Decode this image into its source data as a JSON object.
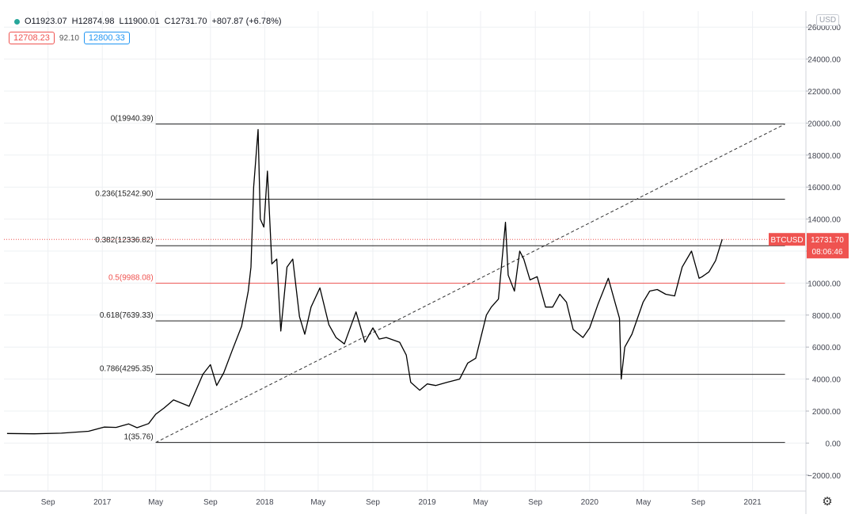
{
  "ohlc": {
    "open": "O11923.07",
    "high": "H12874.98",
    "low": "L11900.01",
    "close": "C12731.70",
    "change": "+807.87 (+6.78%)"
  },
  "quote": {
    "sell": "12708.23",
    "spread": "92.10",
    "buy": "12800.33"
  },
  "currency_button": "USD",
  "price_tag": {
    "symbol": "BTCUSD",
    "price": "12731.70",
    "countdown": "08:06:46"
  },
  "colors": {
    "price_line": "#000000",
    "accent_red": "#ef5350",
    "grid": "#eef0f3",
    "fib_line": "#222222"
  },
  "icons": {
    "settings": "gear-icon",
    "status": "dot-icon"
  },
  "chart_data": {
    "type": "line",
    "series": [
      {
        "x": [
          "2016-06-01",
          "2016-08-01",
          "2016-10-01",
          "2016-12-01",
          "2017-01-05",
          "2017-02-01",
          "2017-03-01",
          "2017-03-20",
          "2017-04-15",
          "2017-05-01",
          "2017-05-20",
          "2017-06-10",
          "2017-07-15",
          "2017-08-15",
          "2017-09-01",
          "2017-09-15",
          "2017-10-01",
          "2017-10-20",
          "2017-11-10",
          "2017-11-25",
          "2017-12-01",
          "2017-12-07",
          "2017-12-17",
          "2017-12-22",
          "2017-12-30",
          "2018-01-07",
          "2018-01-17",
          "2018-01-28",
          "2018-02-06",
          "2018-02-20",
          "2018-03-05",
          "2018-03-20",
          "2018-04-01",
          "2018-04-15",
          "2018-05-05",
          "2018-05-25",
          "2018-06-10",
          "2018-06-29",
          "2018-07-25",
          "2018-08-14",
          "2018-09-01",
          "2018-09-15",
          "2018-10-01",
          "2018-10-31",
          "2018-11-15",
          "2018-11-25",
          "2018-12-15",
          "2019-01-01",
          "2019-01-20",
          "2019-02-15",
          "2019-03-15",
          "2019-04-02",
          "2019-04-20",
          "2019-05-14",
          "2019-05-25",
          "2019-06-10",
          "2019-06-20",
          "2019-06-26",
          "2019-07-02",
          "2019-07-16",
          "2019-07-28",
          "2019-08-06",
          "2019-08-20",
          "2019-09-05",
          "2019-09-24",
          "2019-10-10",
          "2019-10-26",
          "2019-11-10",
          "2019-11-25",
          "2019-12-17",
          "2020-01-01",
          "2020-01-20",
          "2020-02-12",
          "2020-02-28",
          "2020-03-08",
          "2020-03-12",
          "2020-03-20",
          "2020-04-05",
          "2020-04-30",
          "2020-05-15",
          "2020-06-01",
          "2020-06-20",
          "2020-07-10",
          "2020-07-27",
          "2020-08-17",
          "2020-09-03",
          "2020-09-10",
          "2020-09-25",
          "2020-10-10",
          "2020-10-20",
          "2020-10-25"
        ],
        "y": [
          600,
          580,
          620,
          740,
          1000,
          980,
          1200,
          960,
          1220,
          1800,
          2200,
          2700,
          2300,
          4300,
          4900,
          3600,
          4400,
          5800,
          7300,
          9500,
          11000,
          16000,
          19600,
          14000,
          13500,
          17000,
          11200,
          11500,
          7000,
          11000,
          11500,
          7900,
          6800,
          8500,
          9700,
          7400,
          6600,
          6200,
          8200,
          6300,
          7200,
          6500,
          6600,
          6300,
          5500,
          3800,
          3300,
          3700,
          3600,
          3800,
          4000,
          5000,
          5300,
          8000,
          8500,
          9000,
          12000,
          13800,
          10500,
          9500,
          12000,
          11500,
          10200,
          10400,
          8500,
          8500,
          9300,
          8800,
          7100,
          6600,
          7200,
          8700,
          10300,
          8700,
          7800,
          4000,
          6000,
          6800,
          8800,
          9500,
          9600,
          9300,
          9200,
          11000,
          12000,
          10300,
          10400,
          10700,
          11400,
          12300,
          12731.7
        ]
      }
    ],
    "fibonacci": {
      "levels": [
        {
          "label": "0(19940.39)",
          "ratio": 0,
          "price": 19940.39
        },
        {
          "label": "0.236(15242.90)",
          "ratio": 0.236,
          "price": 15242.9
        },
        {
          "label": "0.382(12336.82)",
          "ratio": 0.382,
          "price": 12336.82
        },
        {
          "label": "0.5(9988.08)",
          "ratio": 0.5,
          "price": 9988.08,
          "color": "#ef5350"
        },
        {
          "label": "0.618(7639.33)",
          "ratio": 0.618,
          "price": 7639.33
        },
        {
          "label": "0.786(4295.35)",
          "ratio": 0.786,
          "price": 4295.35
        },
        {
          "label": "1(35.76)",
          "ratio": 1,
          "price": 35.76
        }
      ],
      "start_date": "2017-05-01",
      "end_date": "2021-03-15"
    },
    "trend_line": {
      "from": [
        "2017-05-01",
        35.76
      ],
      "to": [
        "2021-03-15",
        19940.39
      ]
    },
    "current_price": 12731.7,
    "yticks": [
      -2000,
      0,
      2000,
      4000,
      6000,
      8000,
      10000,
      12000,
      14000,
      16000,
      18000,
      20000,
      22000,
      24000,
      26000
    ],
    "ytick_labels": [
      "−2000.00",
      "0.00",
      "2000.00",
      "4000.00",
      "6000.00",
      "8000.00",
      "10000.00",
      "12000.00",
      "14000.00",
      "16000.00",
      "18000.00",
      "20000.00",
      "22000.00",
      "24000.00",
      "26000.00"
    ],
    "xticks": [
      {
        "date": "2016-09-01",
        "label": "Sep"
      },
      {
        "date": "2017-01-01",
        "label": "2017"
      },
      {
        "date": "2017-05-01",
        "label": "May"
      },
      {
        "date": "2017-09-01",
        "label": "Sep"
      },
      {
        "date": "2018-01-01",
        "label": "2018"
      },
      {
        "date": "2018-05-01",
        "label": "May"
      },
      {
        "date": "2018-09-01",
        "label": "Sep"
      },
      {
        "date": "2019-01-01",
        "label": "2019"
      },
      {
        "date": "2019-05-01",
        "label": "May"
      },
      {
        "date": "2019-09-01",
        "label": "Sep"
      },
      {
        "date": "2020-01-01",
        "label": "2020"
      },
      {
        "date": "2020-05-01",
        "label": "May"
      },
      {
        "date": "2020-09-01",
        "label": "Sep"
      },
      {
        "date": "2021-01-01",
        "label": "2021"
      }
    ],
    "xlim": [
      "2016-05-25",
      "2021-05-01"
    ],
    "ylim": [
      -3000,
      27000
    ],
    "grid": true
  }
}
